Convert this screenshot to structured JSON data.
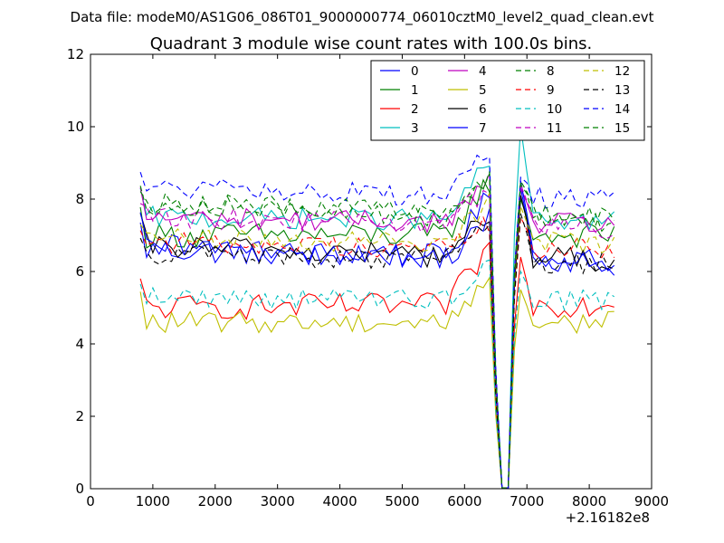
{
  "figure": {
    "suptitle": "Data file: modeM0/AS1G06_086T01_9000000774_06010cztM0_level2_quad_clean.evt"
  },
  "chart_data": {
    "type": "line",
    "title": "Quadrant 3 module wise count rates with 100.0s bins.",
    "xlabel": "",
    "ylabel": "",
    "x_offset_label": "+2.16182e8",
    "xlim": [
      0,
      9000
    ],
    "ylim": [
      0,
      12
    ],
    "xticks": [
      0,
      1000,
      2000,
      3000,
      4000,
      5000,
      6000,
      7000,
      8000,
      9000
    ],
    "yticks": [
      0,
      2,
      4,
      6,
      8,
      10,
      12
    ],
    "grid": false,
    "legend_position": "top-right",
    "x": [
      800,
      900,
      1000,
      1100,
      1200,
      1300,
      1400,
      1500,
      1600,
      1700,
      1800,
      1900,
      2000,
      2100,
      2200,
      2300,
      2400,
      2500,
      2600,
      2700,
      2800,
      2900,
      3000,
      3100,
      3200,
      3300,
      3400,
      3500,
      3600,
      3700,
      3800,
      3900,
      4000,
      4100,
      4200,
      4300,
      4400,
      4500,
      4600,
      4700,
      4800,
      4900,
      5000,
      5100,
      5200,
      5300,
      5400,
      5500,
      5600,
      5700,
      5800,
      5900,
      6000,
      6100,
      6200,
      6300,
      6400,
      6500,
      6600,
      6700,
      6800,
      6900,
      7000,
      7100,
      7200,
      7300,
      7400,
      7500,
      7600,
      7700,
      7800,
      7900,
      8000,
      8100,
      8200,
      8300,
      8400
    ],
    "series": [
      {
        "name": "0",
        "color": "#0000ff",
        "dash": "solid",
        "base": 6.6,
        "amp": 0.35,
        "peak_pre": 8.3,
        "peak_post": 8.3,
        "end": 6.3
      },
      {
        "name": "1",
        "color": "#008000",
        "dash": "solid",
        "base": 7.0,
        "amp": 0.35,
        "peak_pre": 8.5,
        "peak_post": 8.0,
        "end": 7.0
      },
      {
        "name": "2",
        "color": "#ff0000",
        "dash": "solid",
        "base": 5.0,
        "amp": 0.35,
        "peak_pre": 6.6,
        "peak_post": 6.4,
        "end": 5.1
      },
      {
        "name": "3",
        "color": "#00bfbf",
        "dash": "solid",
        "base": 7.5,
        "amp": 0.3,
        "peak_pre": 9.1,
        "peak_post": 10.0,
        "end": 7.4
      },
      {
        "name": "4",
        "color": "#bf00bf",
        "dash": "solid",
        "base": 7.5,
        "amp": 0.3,
        "peak_pre": 8.6,
        "peak_post": 8.3,
        "end": 7.3
      },
      {
        "name": "5",
        "color": "#bfbf00",
        "dash": "solid",
        "base": 4.6,
        "amp": 0.3,
        "peak_pre": 5.8,
        "peak_post": 5.5,
        "end": 4.6
      },
      {
        "name": "6",
        "color": "#000000",
        "dash": "solid",
        "base": 6.7,
        "amp": 0.35,
        "peak_pre": 7.9,
        "peak_post": 8.1,
        "end": 6.3
      },
      {
        "name": "7",
        "color": "#0000ff",
        "dash": "solid",
        "base": 6.7,
        "amp": 0.35,
        "peak_pre": 7.9,
        "peak_post": 8.5,
        "end": 6.2
      },
      {
        "name": "8",
        "color": "#008000",
        "dash": "dashed",
        "base": 7.9,
        "amp": 0.3,
        "peak_pre": 9.2,
        "peak_post": 8.4,
        "end": 7.3
      },
      {
        "name": "9",
        "color": "#ff0000",
        "dash": "dashed",
        "base": 6.8,
        "amp": 0.3,
        "peak_pre": 7.5,
        "peak_post": 7.5,
        "end": 6.6
      },
      {
        "name": "10",
        "color": "#00bfbf",
        "dash": "dashed",
        "base": 5.3,
        "amp": 0.3,
        "peak_pre": 6.3,
        "peak_post": 6.0,
        "end": 5.2
      },
      {
        "name": "11",
        "color": "#bf00bf",
        "dash": "dashed",
        "base": 7.5,
        "amp": 0.3,
        "peak_pre": 8.5,
        "peak_post": 8.4,
        "end": 7.2
      },
      {
        "name": "12",
        "color": "#bfbf00",
        "dash": "dashed",
        "base": 6.9,
        "amp": 0.3,
        "peak_pre": 8.0,
        "peak_post": 7.8,
        "end": 6.8
      },
      {
        "name": "13",
        "color": "#000000",
        "dash": "dashed",
        "base": 6.5,
        "amp": 0.3,
        "peak_pre": 7.5,
        "peak_post": 7.6,
        "end": 6.2
      },
      {
        "name": "14",
        "color": "#0000ff",
        "dash": "dashed",
        "base": 8.3,
        "amp": 0.3,
        "peak_pre": 9.6,
        "peak_post": 8.6,
        "end": 8.0
      },
      {
        "name": "15",
        "color": "#008000",
        "dash": "dashed",
        "base": 7.9,
        "amp": 0.3,
        "peak_pre": 8.9,
        "peak_post": 8.5,
        "end": 7.5
      }
    ]
  }
}
